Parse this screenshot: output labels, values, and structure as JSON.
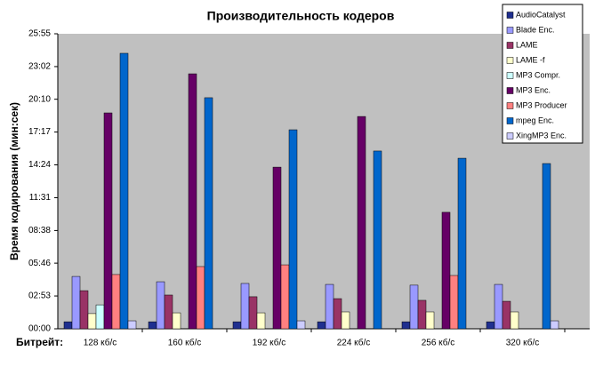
{
  "chart_data": {
    "type": "bar",
    "title": "Производительность кодеров",
    "y_label": "Время кодирования (мин:сек)",
    "x_label": "Битрейт:",
    "categories": [
      "128 кб/с",
      "160 кб/с",
      "192 кб/с",
      "224 кб/с",
      "256 кб/с",
      "320 кб/с"
    ],
    "series": [
      {
        "name": "AudioCatalyst",
        "color": "#1f2f8f",
        "values": [
          37,
          37,
          37,
          37,
          37,
          37
        ]
      },
      {
        "name": "Blade Enc.",
        "color": "#9999ff",
        "values": [
          276,
          248,
          239,
          234,
          230,
          234
        ]
      },
      {
        "name": "LAME",
        "color": "#993366",
        "values": [
          201,
          178,
          169,
          159,
          150,
          145
        ]
      },
      {
        "name": "LAME -f",
        "color": "#ffffcc",
        "values": [
          80,
          84,
          84,
          89,
          89,
          89
        ]
      },
      {
        "name": "MP3 Compr.",
        "color": "#ccffff",
        "values": [
          126,
          null,
          null,
          null,
          null,
          null
        ]
      },
      {
        "name": "MP3 Enc.",
        "color": "#660066",
        "values": [
          1138,
          1344,
          852,
          1119,
          614,
          null
        ]
      },
      {
        "name": "MP3 Producer",
        "color": "#ff8080",
        "values": [
          286,
          328,
          337,
          null,
          281,
          null
        ]
      },
      {
        "name": "mpeg Enc.",
        "color": "#0066cc",
        "values": [
          1452,
          1218,
          1049,
          937,
          899,
          871
        ]
      },
      {
        "name": "XingMP3 Enc.",
        "color": "#ccccff",
        "values": [
          42,
          null,
          42,
          null,
          null,
          42
        ]
      }
    ],
    "ylim": [
      0,
      1555
    ],
    "yticks": [
      {
        "value": 0,
        "label": "00:00"
      },
      {
        "value": 173,
        "label": "02:53"
      },
      {
        "value": 346,
        "label": "05:46"
      },
      {
        "value": 518,
        "label": "08:38"
      },
      {
        "value": 691,
        "label": "11:31"
      },
      {
        "value": 864,
        "label": "14:24"
      },
      {
        "value": 1037,
        "label": "17:17"
      },
      {
        "value": 1210,
        "label": "20:10"
      },
      {
        "value": 1382,
        "label": "23:02"
      },
      {
        "value": 1555,
        "label": "25:55"
      }
    ],
    "grid": false,
    "legend": "top-right"
  }
}
